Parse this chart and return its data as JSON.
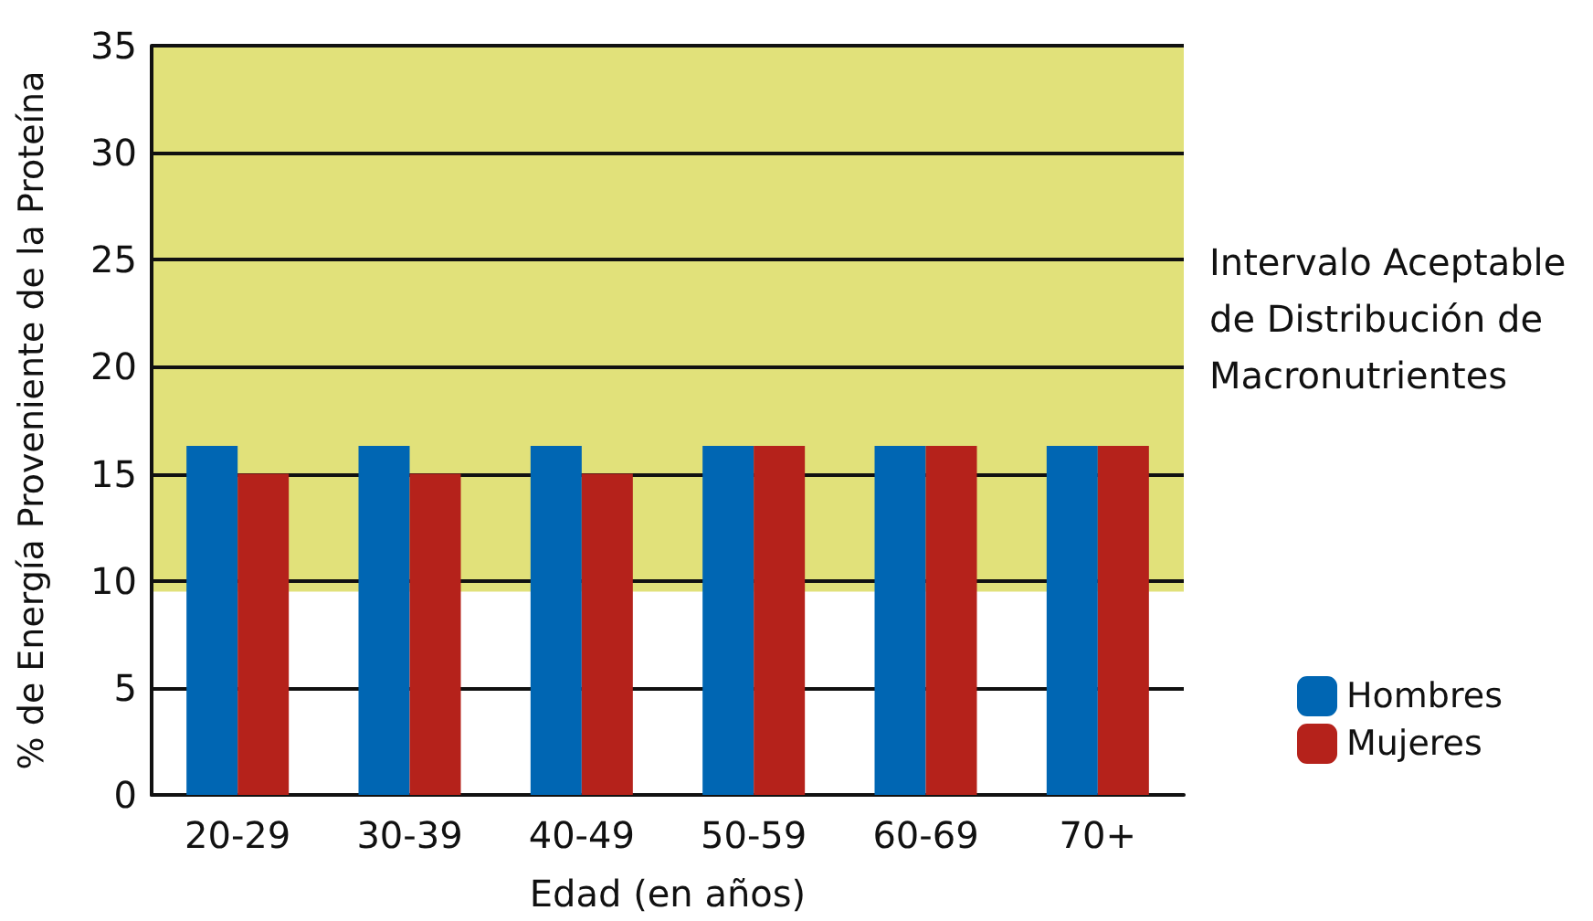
{
  "chart_data": {
    "type": "bar",
    "xlabel": "Edad (en años)",
    "ylabel": "% de Energía Proveniente de la Proteína",
    "categories": [
      "20-29",
      "30-39",
      "40-49",
      "50-59",
      "60-69",
      "70+"
    ],
    "series": [
      {
        "name": "Hombres",
        "color": "#0066b3",
        "values": [
          16.3,
          16.3,
          16.3,
          16.3,
          16.3,
          16.3
        ]
      },
      {
        "name": "Mujeres",
        "color": "#b5221b",
        "values": [
          15,
          15,
          15,
          16.3,
          16.3,
          16.3
        ]
      }
    ],
    "ylim": [
      0,
      35
    ],
    "yticks": [
      0,
      5,
      10,
      15,
      20,
      25,
      30,
      35
    ],
    "grid": "y",
    "legend": "right",
    "bands": [
      {
        "axis": "y",
        "from": 9.5,
        "to": 35,
        "label": "Intervalo Aceptable de Distribución de Macronutrientes",
        "color": "#e1e17a"
      }
    ]
  }
}
